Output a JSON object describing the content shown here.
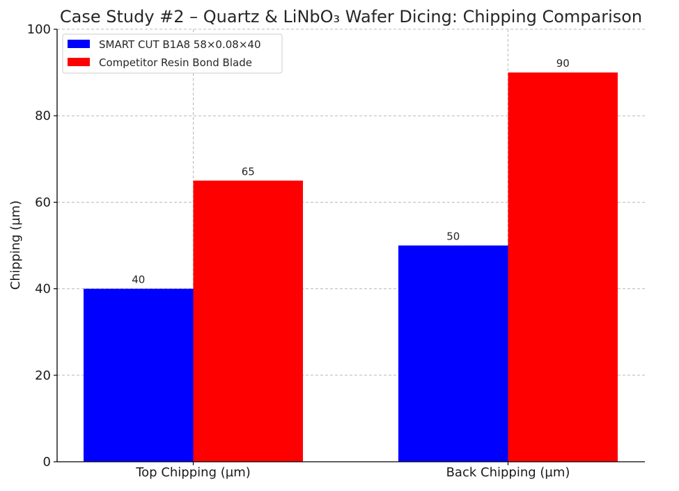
{
  "chart_data": {
    "type": "bar",
    "title": "Case Study #2 – Quartz & LiNbO₃ Wafer Dicing: Chipping Comparison",
    "xlabel": "",
    "ylabel": "Chipping (µm)",
    "categories": [
      "Top Chipping (µm)",
      "Back Chipping (µm)"
    ],
    "series": [
      {
        "name": "SMART CUT B1A8 58×0.08×40",
        "values": [
          40,
          50
        ],
        "color": "#0000ff"
      },
      {
        "name": "Competitor Resin Bond Blade",
        "values": [
          65,
          90
        ],
        "color": "#ff0000"
      }
    ],
    "ylim": [
      0,
      100
    ],
    "yticks": [
      0,
      20,
      40,
      60,
      80,
      100
    ],
    "grid": true,
    "legend_position": "top-left",
    "data_labels": true
  }
}
